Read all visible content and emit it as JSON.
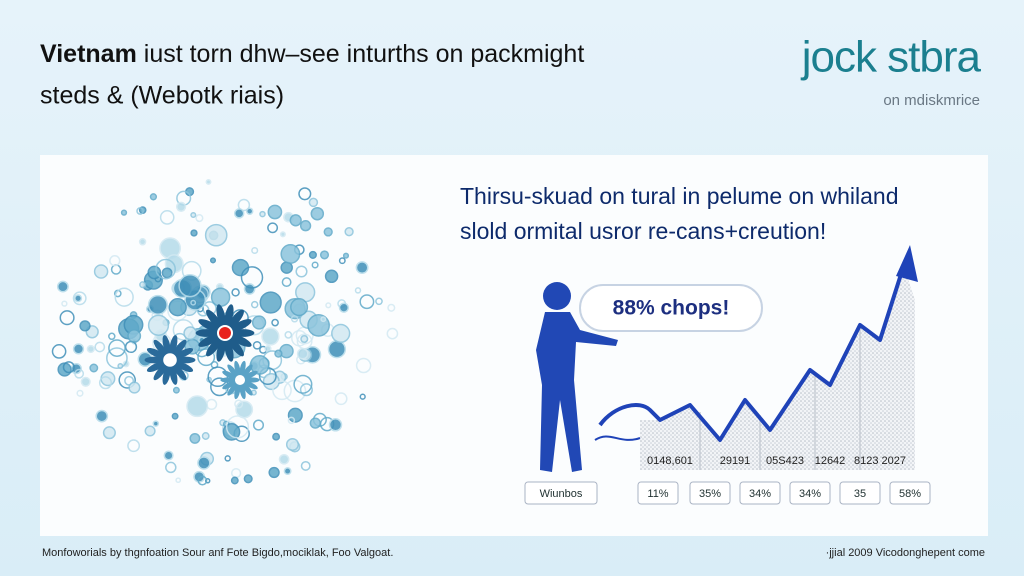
{
  "header": {
    "title_bold": "Vietnam",
    "title_rest": "iust torn dhw–see inturths on packmight",
    "subtitle": "steds & (Webotk riais)"
  },
  "logo": {
    "name": "jock stbra",
    "tagline": "on mdiskmrice"
  },
  "panel": {
    "heading": [
      "Thirsu-skuad on tural in pelume on whiland",
      "slold ormital usror re-cans+creution!"
    ],
    "callout": "88% chops!",
    "figure_labels": [
      "0148,601",
      "29191",
      "05S423",
      "12642",
      "8123 2027"
    ],
    "boxes": [
      "Wiunbos",
      "11%",
      "35%",
      "34%",
      "34%",
      "35",
      "58%"
    ]
  },
  "footer": {
    "left": "Monfoworials by thgnfoation Sour anf Fote Bigdo,mociklak, Foo Valgoat.",
    "right": "·jjial 2009 Vicodonghepent come"
  }
}
